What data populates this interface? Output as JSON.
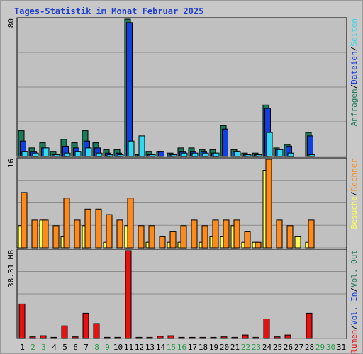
{
  "title": "Tages-Statistik im Monat Februar 2025",
  "colors": {
    "anfragen": "#1a7a5a",
    "dateien": "#1040e0",
    "seiten": "#30d8f0",
    "besuche": "#ffff50",
    "rechner": "#ff8a1a",
    "volumen": "#e81010",
    "weekend": "#2a9a4a",
    "weekday": "#000000",
    "panel": "#c0c0c0",
    "grid": "#8c8c8c"
  },
  "chart_data": [
    {
      "type": "bar",
      "panel": "hits",
      "ymax_label": "80",
      "ymax": 80,
      "grid": true,
      "categories": [
        "1",
        "2",
        "3",
        "4",
        "5",
        "6",
        "7",
        "8",
        "9",
        "10",
        "11",
        "12",
        "13",
        "14",
        "15",
        "16",
        "17",
        "18",
        "19",
        "20",
        "21",
        "22",
        "23",
        "24",
        "25",
        "26",
        "27",
        "28",
        "29",
        "30",
        "31"
      ],
      "weekend": [
        false,
        true,
        true,
        false,
        false,
        false,
        false,
        true,
        true,
        false,
        false,
        false,
        false,
        false,
        true,
        true,
        false,
        false,
        false,
        false,
        false,
        true,
        true,
        false,
        false,
        false,
        false,
        false,
        true,
        true,
        false
      ],
      "series": [
        {
          "name": "Anfragen",
          "values": [
            15,
            5,
            8,
            3,
            10,
            8,
            15,
            8,
            4,
            4,
            80,
            1,
            3,
            3,
            2,
            5,
            5,
            4,
            4,
            18,
            4,
            2,
            2,
            30,
            5,
            7,
            0,
            14,
            0,
            0,
            0
          ]
        },
        {
          "name": "Dateien",
          "values": [
            9,
            3,
            5,
            1,
            6,
            5,
            9,
            5,
            2,
            2,
            78,
            1,
            1,
            3,
            1,
            3,
            3,
            3,
            2,
            16,
            3,
            1,
            1,
            28,
            4,
            6,
            0,
            12,
            0,
            0,
            0
          ]
        },
        {
          "name": "Seiten",
          "values": [
            3,
            2,
            5,
            1,
            2,
            3,
            5,
            2,
            1,
            1,
            9,
            12,
            1,
            0,
            1,
            2,
            2,
            2,
            2,
            0,
            3,
            1,
            1,
            14,
            4,
            2,
            0,
            1,
            0,
            0,
            0
          ]
        }
      ],
      "label_series": [
        "Anfragen",
        "Dateien",
        "Seiten"
      ]
    },
    {
      "type": "bar",
      "panel": "visits",
      "ymax_label": "16",
      "ymax": 16,
      "grid": true,
      "series": [
        {
          "name": "Besuche",
          "values": [
            4,
            0,
            5,
            0,
            2,
            0,
            4,
            0,
            1,
            0,
            4,
            0,
            1,
            0,
            1,
            1,
            0,
            1,
            2,
            2,
            4,
            1,
            1,
            14,
            0,
            0,
            2,
            1,
            0,
            0,
            0
          ]
        },
        {
          "name": "Rechner",
          "values": [
            10,
            5,
            5,
            4,
            9,
            5,
            7,
            7,
            6,
            5,
            9,
            4,
            4,
            2,
            3,
            4,
            5,
            4,
            5,
            5,
            5,
            3,
            1,
            16,
            5,
            4,
            0,
            5,
            0,
            0,
            0
          ]
        }
      ],
      "label_series": [
        "Besuche",
        "Rechner"
      ],
      "label_sep": "/"
    },
    {
      "type": "bar",
      "panel": "volume",
      "ymax_label": "38.31 MB",
      "ymax": 38.31,
      "grid": true,
      "series": [
        {
          "name": "Volumen",
          "values": [
            15,
            0.7,
            1.2,
            0.5,
            5.5,
            0.7,
            11,
            6.5,
            0.5,
            0.5,
            38.31,
            0.5,
            0.5,
            1,
            1.2,
            0.5,
            0.5,
            0.5,
            0.5,
            0.7,
            0.5,
            1.5,
            0.5,
            8.5,
            0.7,
            1.5,
            0,
            11,
            0,
            0,
            0
          ]
        }
      ],
      "label_series": [
        "Volumen",
        "Vol. In",
        "Vol. Out"
      ],
      "label_sep": "/"
    }
  ]
}
